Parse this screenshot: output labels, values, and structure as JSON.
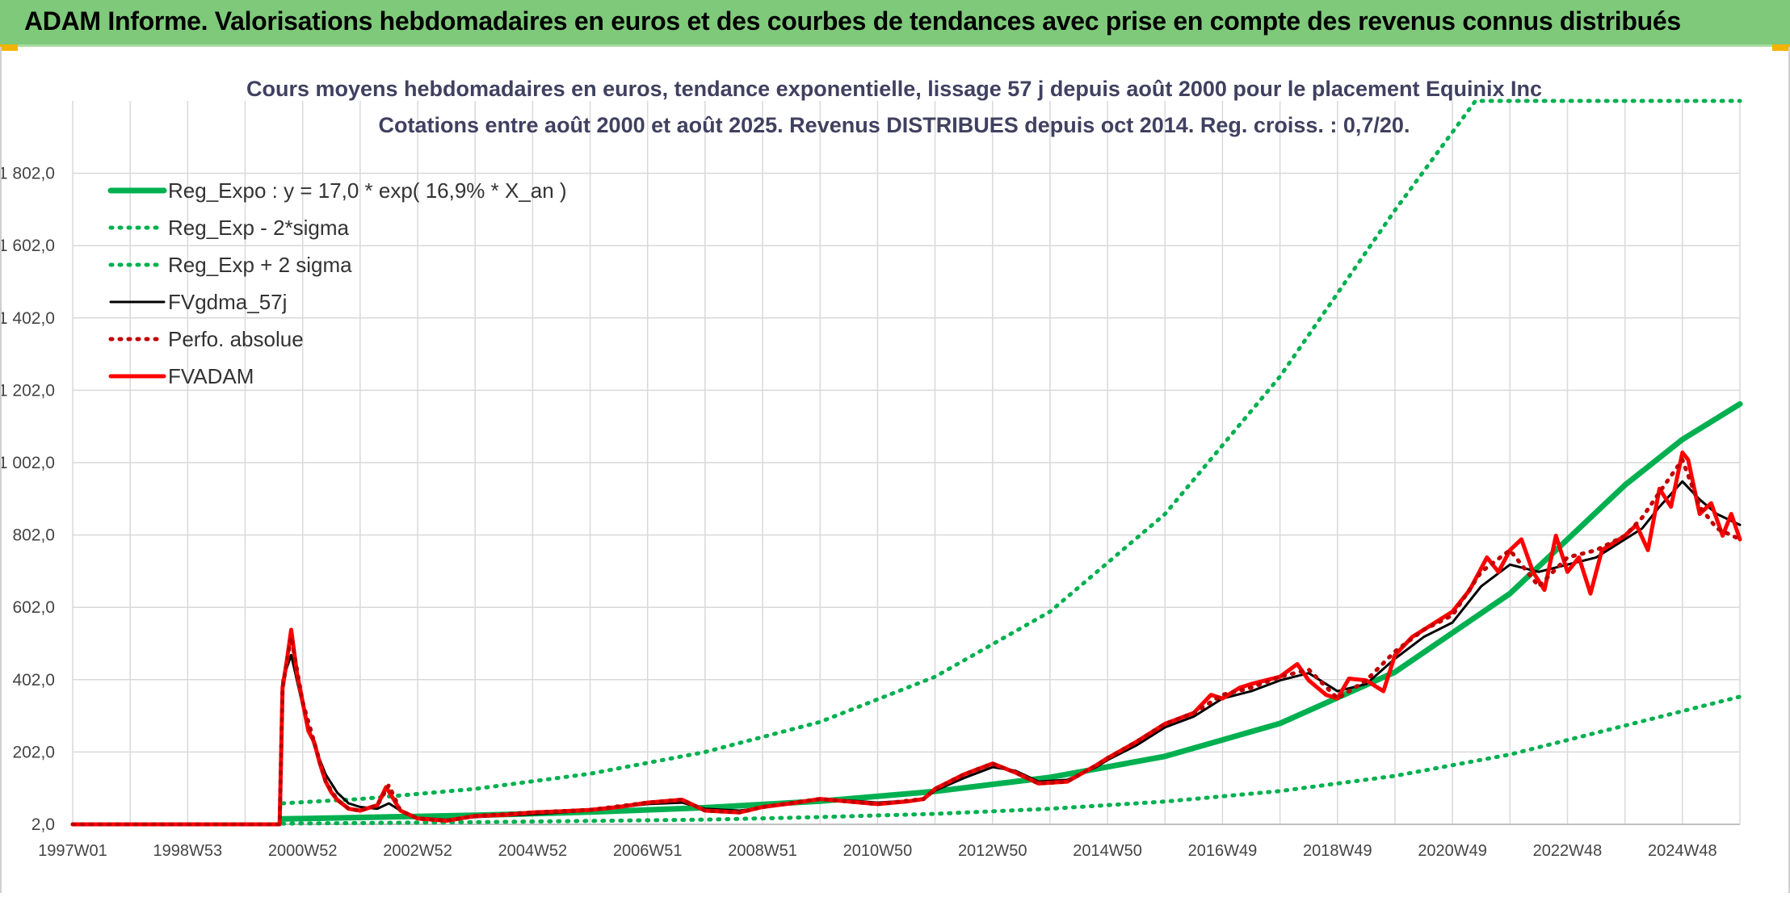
{
  "header": {
    "title": "ADAM Informe. Valorisations hebdomadaires en euros et des courbes de tendances avec prise en compte des revenus connus distribués"
  },
  "chart_data": {
    "type": "line",
    "title_line1": "Cours moyens hebdomadaires en euros, tendance exponentielle, lissage 57 j depuis août 2000 pour le placement Equinix Inc",
    "title_line2": "Cotations entre août 2000 et août 2025. Revenus DISTRIBUES depuis oct 2014. Reg. croiss. : 0,7/20.",
    "y_ticks": [
      "1 802,0",
      "1 602,0",
      "1 402,0",
      "1 202,0",
      "1 002,0",
      "802,0",
      "602,0",
      "402,0",
      "202,0",
      "2,0"
    ],
    "y_tick_values": [
      1802,
      1602,
      1402,
      1202,
      1002,
      802,
      602,
      402,
      202,
      2
    ],
    "ylim": [
      2,
      2002
    ],
    "x_ticks": [
      "1997W01",
      "1998W53",
      "2000W52",
      "2002W52",
      "2004W52",
      "2006W51",
      "2008W51",
      "2010W50",
      "2012W50",
      "2014W50",
      "2016W49",
      "2018W49",
      "2020W49",
      "2022W48",
      "2024W48"
    ],
    "x_tick_years": [
      1997.0,
      1999.0,
      2001.0,
      2003.0,
      2005.0,
      2007.0,
      2009.0,
      2011.0,
      2013.0,
      2015.0,
      2017.0,
      2019.0,
      2021.0,
      2023.0,
      2025.0
    ],
    "xlim": [
      1997.0,
      2026.0
    ],
    "grid": true,
    "legend_position": "top-left",
    "series": [
      {
        "name": "Reg_Expo : y = 17,0 * exp( 16,9% *  X_an )",
        "color": "#00b050",
        "style": "solid-thick",
        "points": [
          [
            2000.65,
            17
          ],
          [
            2002,
            21
          ],
          [
            2004,
            27
          ],
          [
            2006,
            36
          ],
          [
            2008,
            48
          ],
          [
            2010,
            66
          ],
          [
            2012,
            93
          ],
          [
            2014,
            132
          ],
          [
            2016,
            190
          ],
          [
            2018,
            281
          ],
          [
            2020,
            423
          ],
          [
            2022,
            640
          ],
          [
            2024,
            940
          ],
          [
            2025,
            1066
          ],
          [
            2026,
            1164
          ]
        ]
      },
      {
        "name": "Reg_Exp - 2*sigma",
        "color": "#00b050",
        "style": "dotted",
        "points": [
          [
            2000.65,
            4
          ],
          [
            2004,
            8
          ],
          [
            2008,
            15
          ],
          [
            2010,
            22
          ],
          [
            2012,
            31
          ],
          [
            2014,
            45
          ],
          [
            2016,
            65
          ],
          [
            2018,
            94
          ],
          [
            2020,
            136
          ],
          [
            2022,
            195
          ],
          [
            2024,
            275
          ],
          [
            2026,
            355
          ]
        ]
      },
      {
        "name": "Reg_Exp + 2 sigma",
        "color": "#00b050",
        "style": "dotted",
        "points": [
          [
            2000.65,
            60
          ],
          [
            2002,
            72
          ],
          [
            2004,
            100
          ],
          [
            2006,
            142
          ],
          [
            2008,
            202
          ],
          [
            2010,
            285
          ],
          [
            2012,
            410
          ],
          [
            2014,
            590
          ],
          [
            2016,
            860
          ],
          [
            2018,
            1240
          ],
          [
            2020,
            1700
          ],
          [
            2021.4,
            2002
          ],
          [
            2026,
            2002
          ]
        ]
      },
      {
        "name": "FVgdma_57j",
        "color": "#000000",
        "style": "solid",
        "points": [
          [
            1997,
            2
          ],
          [
            2000.6,
            2
          ],
          [
            2000.65,
            400
          ],
          [
            2000.8,
            470
          ],
          [
            2001.0,
            330
          ],
          [
            2001.2,
            220
          ],
          [
            2001.4,
            140
          ],
          [
            2001.6,
            90
          ],
          [
            2001.8,
            60
          ],
          [
            2002.0,
            50
          ],
          [
            2002.3,
            45
          ],
          [
            2002.5,
            60
          ],
          [
            2002.7,
            40
          ],
          [
            2003,
            20
          ],
          [
            2003.5,
            15
          ],
          [
            2004,
            22
          ],
          [
            2005,
            30
          ],
          [
            2006,
            40
          ],
          [
            2007,
            58
          ],
          [
            2007.6,
            62
          ],
          [
            2008,
            45
          ],
          [
            2008.6,
            40
          ],
          [
            2009,
            48
          ],
          [
            2010,
            70
          ],
          [
            2010.5,
            68
          ],
          [
            2011,
            62
          ],
          [
            2011.8,
            70
          ],
          [
            2012,
            95
          ],
          [
            2012.5,
            130
          ],
          [
            2013,
            160
          ],
          [
            2013.4,
            150
          ],
          [
            2013.8,
            120
          ],
          [
            2014.3,
            125
          ],
          [
            2014.8,
            160
          ],
          [
            2015,
            180
          ],
          [
            2015.5,
            220
          ],
          [
            2016,
            270
          ],
          [
            2016.5,
            300
          ],
          [
            2017,
            350
          ],
          [
            2017.5,
            370
          ],
          [
            2018,
            400
          ],
          [
            2018.5,
            420
          ],
          [
            2019,
            370
          ],
          [
            2019.5,
            390
          ],
          [
            2020,
            460
          ],
          [
            2020.5,
            520
          ],
          [
            2021,
            560
          ],
          [
            2021.5,
            660
          ],
          [
            2022,
            720
          ],
          [
            2022.5,
            700
          ],
          [
            2023,
            720
          ],
          [
            2023.5,
            740
          ],
          [
            2024,
            790
          ],
          [
            2024.3,
            820
          ],
          [
            2024.6,
            880
          ],
          [
            2025,
            950
          ],
          [
            2025.3,
            900
          ],
          [
            2025.6,
            860
          ],
          [
            2026,
            830
          ]
        ]
      },
      {
        "name": "Perfo. absolue",
        "color": "#c00000",
        "style": "dotted",
        "points": [
          [
            1997,
            2
          ],
          [
            2000.6,
            2
          ],
          [
            2000.65,
            380
          ],
          [
            2000.8,
            520
          ],
          [
            2001.0,
            340
          ],
          [
            2001.2,
            230
          ],
          [
            2001.4,
            120
          ],
          [
            2001.6,
            70
          ],
          [
            2001.8,
            45
          ],
          [
            2002.0,
            40
          ],
          [
            2002.3,
            55
          ],
          [
            2002.5,
            110
          ],
          [
            2002.7,
            40
          ],
          [
            2003,
            18
          ],
          [
            2003.5,
            12
          ],
          [
            2004,
            25
          ],
          [
            2005,
            35
          ],
          [
            2006,
            42
          ],
          [
            2007,
            62
          ],
          [
            2007.6,
            70
          ],
          [
            2008,
            40
          ],
          [
            2008.6,
            35
          ],
          [
            2009,
            50
          ],
          [
            2010,
            72
          ],
          [
            2010.5,
            65
          ],
          [
            2011,
            58
          ],
          [
            2011.8,
            72
          ],
          [
            2012,
            100
          ],
          [
            2012.5,
            140
          ],
          [
            2013,
            170
          ],
          [
            2013.4,
            145
          ],
          [
            2013.8,
            115
          ],
          [
            2014.3,
            120
          ],
          [
            2014.8,
            165
          ],
          [
            2015,
            185
          ],
          [
            2015.5,
            230
          ],
          [
            2016,
            280
          ],
          [
            2016.5,
            310
          ],
          [
            2017,
            360
          ],
          [
            2017.5,
            380
          ],
          [
            2018,
            410
          ],
          [
            2018.5,
            430
          ],
          [
            2019,
            350
          ],
          [
            2019.5,
            400
          ],
          [
            2020,
            480
          ],
          [
            2020.5,
            540
          ],
          [
            2021,
            580
          ],
          [
            2021.5,
            700
          ],
          [
            2022,
            760
          ],
          [
            2022.5,
            660
          ],
          [
            2023,
            740
          ],
          [
            2023.5,
            760
          ],
          [
            2024,
            800
          ],
          [
            2024.3,
            850
          ],
          [
            2024.6,
            920
          ],
          [
            2025,
            1010
          ],
          [
            2025.3,
            880
          ],
          [
            2025.6,
            820
          ],
          [
            2026,
            790
          ]
        ]
      },
      {
        "name": "FVADAM",
        "color": "#ff0000",
        "style": "solid-thick",
        "points": [
          [
            1997,
            2
          ],
          [
            2000.6,
            2
          ],
          [
            2000.65,
            380
          ],
          [
            2000.72,
            450
          ],
          [
            2000.8,
            540
          ],
          [
            2000.9,
            420
          ],
          [
            2001.0,
            340
          ],
          [
            2001.1,
            260
          ],
          [
            2001.2,
            230
          ],
          [
            2001.3,
            170
          ],
          [
            2001.4,
            120
          ],
          [
            2001.5,
            90
          ],
          [
            2001.6,
            70
          ],
          [
            2001.8,
            45
          ],
          [
            2002.0,
            40
          ],
          [
            2002.3,
            55
          ],
          [
            2002.45,
            105
          ],
          [
            2002.55,
            80
          ],
          [
            2002.7,
            40
          ],
          [
            2003,
            18
          ],
          [
            2003.5,
            12
          ],
          [
            2004,
            25
          ],
          [
            2004.5,
            28
          ],
          [
            2005,
            35
          ],
          [
            2005.5,
            38
          ],
          [
            2006,
            42
          ],
          [
            2006.5,
            50
          ],
          [
            2007,
            62
          ],
          [
            2007.6,
            70
          ],
          [
            2008,
            40
          ],
          [
            2008.6,
            35
          ],
          [
            2009,
            50
          ],
          [
            2009.5,
            60
          ],
          [
            2010,
            72
          ],
          [
            2010.5,
            65
          ],
          [
            2011,
            58
          ],
          [
            2011.5,
            65
          ],
          [
            2011.8,
            72
          ],
          [
            2012,
            100
          ],
          [
            2012.5,
            140
          ],
          [
            2013,
            170
          ],
          [
            2013.4,
            145
          ],
          [
            2013.8,
            115
          ],
          [
            2014.3,
            120
          ],
          [
            2014.8,
            165
          ],
          [
            2015,
            185
          ],
          [
            2015.5,
            230
          ],
          [
            2016,
            280
          ],
          [
            2016.5,
            310
          ],
          [
            2016.8,
            360
          ],
          [
            2017,
            350
          ],
          [
            2017.3,
            380
          ],
          [
            2017.5,
            390
          ],
          [
            2018,
            410
          ],
          [
            2018.3,
            445
          ],
          [
            2018.5,
            400
          ],
          [
            2018.8,
            360
          ],
          [
            2019,
            350
          ],
          [
            2019.2,
            405
          ],
          [
            2019.5,
            400
          ],
          [
            2019.8,
            370
          ],
          [
            2020,
            470
          ],
          [
            2020.3,
            520
          ],
          [
            2020.5,
            540
          ],
          [
            2020.8,
            570
          ],
          [
            2021,
            590
          ],
          [
            2021.3,
            650
          ],
          [
            2021.6,
            740
          ],
          [
            2021.8,
            700
          ],
          [
            2022,
            760
          ],
          [
            2022.2,
            790
          ],
          [
            2022.4,
            700
          ],
          [
            2022.6,
            650
          ],
          [
            2022.8,
            800
          ],
          [
            2023,
            700
          ],
          [
            2023.2,
            740
          ],
          [
            2023.4,
            640
          ],
          [
            2023.6,
            760
          ],
          [
            2023.8,
            780
          ],
          [
            2024,
            800
          ],
          [
            2024.2,
            830
          ],
          [
            2024.4,
            760
          ],
          [
            2024.6,
            930
          ],
          [
            2024.8,
            880
          ],
          [
            2025,
            1030
          ],
          [
            2025.1,
            1010
          ],
          [
            2025.3,
            860
          ],
          [
            2025.5,
            890
          ],
          [
            2025.7,
            800
          ],
          [
            2025.85,
            860
          ],
          [
            2026,
            790
          ]
        ]
      }
    ]
  }
}
